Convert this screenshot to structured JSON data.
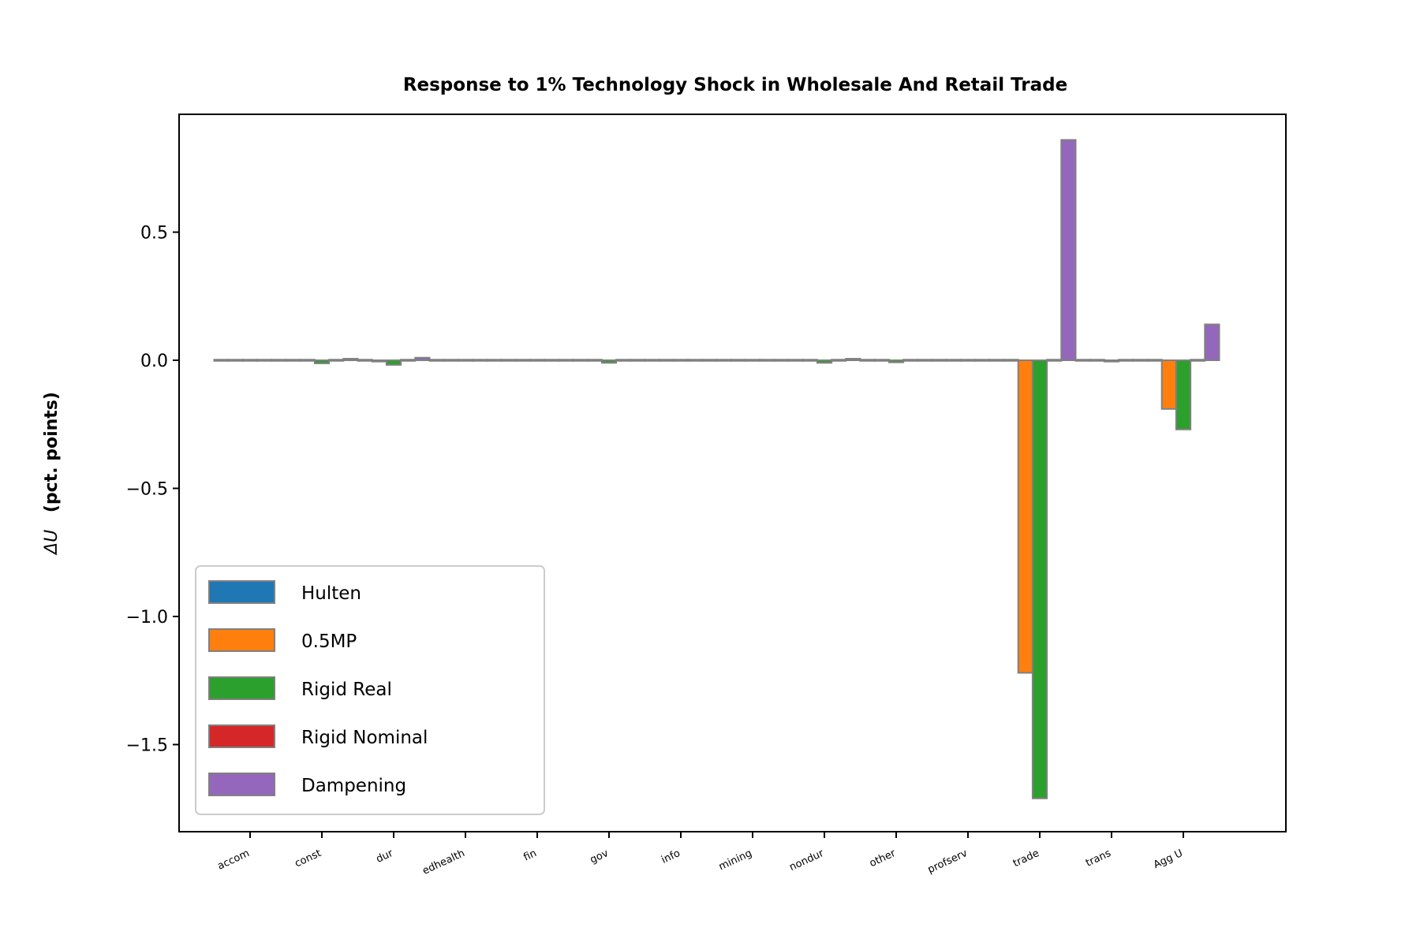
{
  "chart_data": {
    "type": "bar",
    "title": "Response to 1% Technology Shock in Wholesale And Retail Trade",
    "ylabel_symbol": "ΔU",
    "ylabel_text": "(pct. points)",
    "xlabel": "",
    "categories": [
      "accom",
      "const",
      "dur",
      "edhealth",
      "fin",
      "gov",
      "info",
      "mining",
      "nondur",
      "other",
      "profserv",
      "trade",
      "trans",
      "Agg U"
    ],
    "ylim": [
      -1.84,
      0.96
    ],
    "yticks": [
      0.5,
      0.0,
      -0.5,
      -1.0,
      -1.5
    ],
    "ytick_labels": [
      "0.5",
      "0.0",
      "−0.5",
      "−1.0",
      "−1.5"
    ],
    "grid": false,
    "legend_position": "lower-left",
    "bar_edge_color": "#808080",
    "series": [
      {
        "name": "Hulten",
        "color": "#1f77b4",
        "values": [
          0.0,
          0.0,
          0.0,
          0.0,
          0.0,
          0.0,
          0.0,
          0.0,
          0.0,
          0.0,
          0.0,
          0.0,
          0.0,
          0.0
        ]
      },
      {
        "name": "0.5MP",
        "color": "#ff7f0e",
        "values": [
          -0.003,
          -0.004,
          -0.005,
          -0.002,
          -0.003,
          -0.003,
          -0.002,
          0.0,
          -0.003,
          -0.003,
          -0.002,
          -1.22,
          -0.003,
          -0.19
        ]
      },
      {
        "name": "Rigid Real",
        "color": "#2ca02c",
        "values": [
          -0.004,
          -0.012,
          -0.018,
          -0.004,
          -0.004,
          -0.01,
          -0.004,
          -0.001,
          -0.01,
          -0.008,
          -0.004,
          -1.71,
          -0.005,
          -0.27
        ]
      },
      {
        "name": "Rigid Nominal",
        "color": "#d62728",
        "values": [
          0.0,
          0.0,
          0.0,
          0.0,
          0.0,
          0.0,
          0.0,
          0.0,
          0.0,
          0.0,
          0.0,
          0.0,
          0.0,
          0.0
        ]
      },
      {
        "name": "Dampening",
        "color": "#9467bd",
        "values": [
          0.003,
          0.006,
          0.01,
          0.003,
          0.003,
          0.004,
          0.003,
          0.001,
          0.006,
          0.004,
          0.003,
          0.86,
          0.003,
          0.14
        ]
      }
    ]
  }
}
